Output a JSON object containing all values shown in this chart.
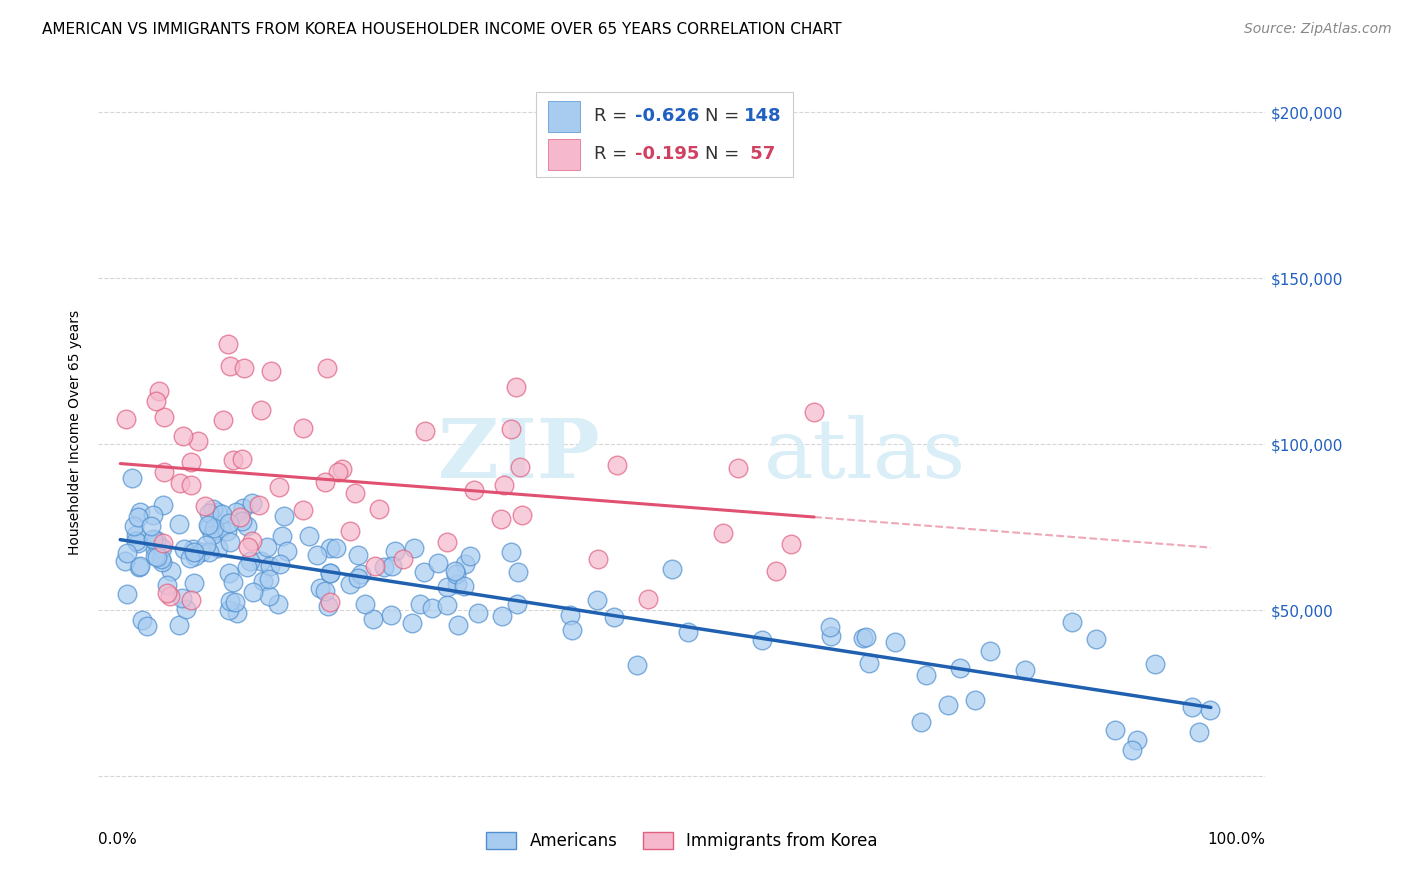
{
  "title": "AMERICAN VS IMMIGRANTS FROM KOREA HOUSEHOLDER INCOME OVER 65 YEARS CORRELATION CHART",
  "source": "Source: ZipAtlas.com",
  "ylabel": "Householder Income Over 65 years",
  "legend_label_1": "Americans",
  "legend_label_2": "Immigrants from Korea",
  "r1": -0.626,
  "n1": 148,
  "r2": -0.195,
  "n2": 57,
  "watermark_zip": "ZIP",
  "watermark_atlas": "atlas",
  "color_blue_fill": "#a8ccf0",
  "color_blue_edge": "#5090d0",
  "color_pink_fill": "#f5b8cc",
  "color_pink_edge": "#e06080",
  "color_blue_line": "#2060b0",
  "color_pink_line": "#e05070",
  "color_blue_text": "#2060c0",
  "color_pink_text": "#d04060",
  "ylim_low": -8000,
  "ylim_high": 215000,
  "xlim_low": -0.02,
  "xlim_high": 1.05,
  "background_color": "#ffffff",
  "grid_color": "#cccccc",
  "title_fontsize": 11,
  "source_fontsize": 10,
  "label_fontsize": 10,
  "tick_fontsize": 11,
  "legend_fontsize": 14,
  "watermark_fontsize_zip": 60,
  "watermark_fontsize_atlas": 60,
  "watermark_color": "#daeef8"
}
